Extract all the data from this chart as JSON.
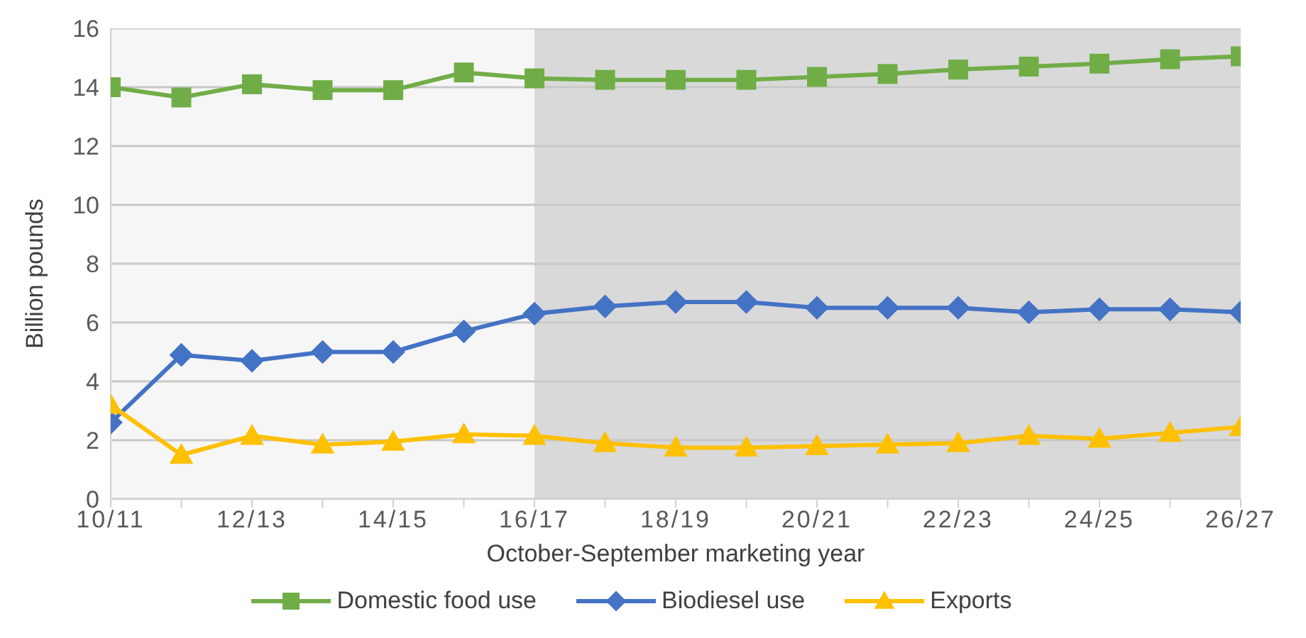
{
  "chart_data": {
    "type": "line",
    "xlabel": "October-September marketing year",
    "ylabel": "Billion pounds",
    "categories": [
      "10/11",
      null,
      "12/13",
      null,
      "14/15",
      null,
      "16/17",
      null,
      "18/19",
      null,
      "20/21",
      null,
      "22/23",
      null,
      "24/25",
      null,
      "26/27"
    ],
    "series": [
      {
        "name": "Domestic food use",
        "color": "#70ad47",
        "marker": "square",
        "values": [
          14,
          13.65,
          14.1,
          13.9,
          13.9,
          14.5,
          14.3,
          14.25,
          14.25,
          14.25,
          14.35,
          14.45,
          14.6,
          14.7,
          14.8,
          14.95,
          15.05
        ]
      },
      {
        "name": "Biodiesel use",
        "color": "#4472c4",
        "marker": "diamond",
        "values": [
          2.6,
          4.9,
          4.7,
          5.0,
          5.0,
          5.7,
          6.3,
          6.55,
          6.7,
          6.7,
          6.5,
          6.5,
          6.5,
          6.35,
          6.45,
          6.45,
          6.35
        ]
      },
      {
        "name": "Exports",
        "color": "#ffc000",
        "marker": "triangle",
        "values": [
          3.2,
          1.5,
          2.15,
          1.85,
          1.95,
          2.2,
          2.15,
          1.9,
          1.75,
          1.75,
          1.8,
          1.85,
          1.9,
          2.15,
          2.05,
          2.25,
          2.45
        ]
      }
    ],
    "ylim": [
      0,
      16
    ],
    "yticks": [
      0,
      2,
      4,
      6,
      8,
      10,
      12,
      14,
      16
    ],
    "grid": "y",
    "legend": "bottom",
    "line_style": "solid",
    "bands": [
      {
        "axis": "x",
        "from": "10/11",
        "to": "16/17",
        "color": "#f6f6f6"
      },
      {
        "axis": "x",
        "from": "16/17",
        "to": "26/27",
        "color": "#d9d9d9"
      }
    ]
  }
}
